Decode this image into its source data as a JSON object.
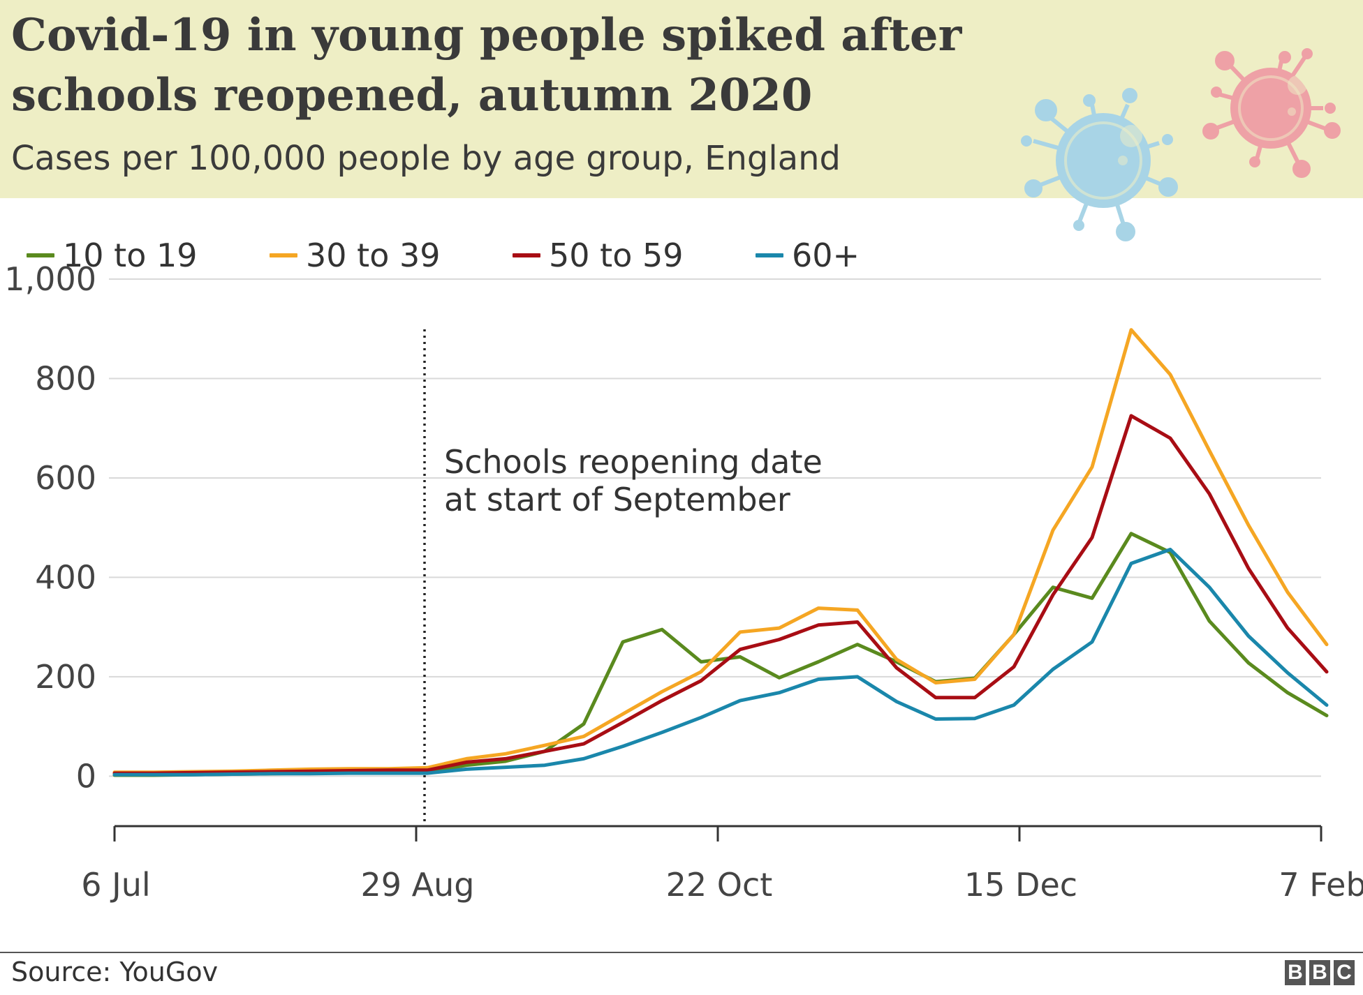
{
  "header": {
    "title": "Covid-19 in young people spiked after schools reopened, autumn 2020",
    "subtitle": "Cases per 100,000 people by age group, England",
    "illustration_icons": [
      "blue-virus-icon",
      "pink-virus-icon"
    ]
  },
  "legend": {
    "items": [
      {
        "label": "10 to 19",
        "color": "#5a8a1e"
      },
      {
        "label": "30 to 39",
        "color": "#f5a623"
      },
      {
        "label": "50 to 59",
        "color": "#a80d14"
      },
      {
        "label": "60+",
        "color": "#1a87ab"
      }
    ]
  },
  "annotation": {
    "line1": "Schools reopening date",
    "line2": "at start of September",
    "date": "2020-09-01"
  },
  "chart_data": {
    "type": "line",
    "title": "Covid-19 in young people spiked after schools reopened, autumn 2020",
    "subtitle": "Cases per 100,000 people by age group, England",
    "xlabel": "",
    "ylabel": "",
    "x": [
      "2020-07-06",
      "2020-07-13",
      "2020-07-20",
      "2020-07-27",
      "2020-08-03",
      "2020-08-10",
      "2020-08-17",
      "2020-08-24",
      "2020-08-31",
      "2020-09-07",
      "2020-09-14",
      "2020-09-21",
      "2020-09-28",
      "2020-10-05",
      "2020-10-12",
      "2020-10-19",
      "2020-10-26",
      "2020-11-02",
      "2020-11-09",
      "2020-11-16",
      "2020-11-23",
      "2020-11-30",
      "2020-12-07",
      "2020-12-14",
      "2020-12-21",
      "2020-12-28",
      "2021-01-04",
      "2021-01-11",
      "2021-01-18",
      "2021-01-25",
      "2021-02-01",
      "2021-02-08"
    ],
    "xticks": [
      {
        "date": "2020-07-06",
        "label": "6 Jul"
      },
      {
        "date": "2020-08-29",
        "label": "29 Aug"
      },
      {
        "date": "2020-10-22",
        "label": "22 Oct"
      },
      {
        "date": "2020-12-15",
        "label": "15 Dec"
      },
      {
        "date": "2021-02-07",
        "label": "7 Feb"
      }
    ],
    "yticks": [
      {
        "value": 0,
        "label": "0"
      },
      {
        "value": 200,
        "label": "200"
      },
      {
        "value": 400,
        "label": "400"
      },
      {
        "value": 600,
        "label": "600"
      },
      {
        "value": 800,
        "label": "800"
      },
      {
        "value": 1000,
        "label": "1,000"
      }
    ],
    "xlim": [
      "2020-07-06",
      "2021-02-07"
    ],
    "ylim": [
      -50,
      1000
    ],
    "grid": "horizontal",
    "legend_position": "top-left",
    "series": [
      {
        "name": "10 to 19",
        "color": "#5a8a1e",
        "values": [
          2,
          2,
          3,
          4,
          5,
          6,
          7,
          8,
          8,
          22,
          30,
          50,
          105,
          270,
          295,
          230,
          240,
          198,
          230,
          265,
          230,
          190,
          197,
          285,
          380,
          358,
          488,
          450,
          312,
          228,
          168,
          122
        ]
      },
      {
        "name": "30 to 39",
        "color": "#f5a623",
        "values": [
          8,
          8,
          9,
          10,
          12,
          14,
          15,
          15,
          17,
          35,
          45,
          62,
          80,
          125,
          170,
          210,
          290,
          298,
          338,
          334,
          235,
          188,
          195,
          285,
          495,
          622,
          898,
          808,
          655,
          505,
          370,
          265
        ]
      },
      {
        "name": "50 to 59",
        "color": "#a80d14",
        "values": [
          6,
          6,
          7,
          8,
          9,
          10,
          11,
          12,
          12,
          28,
          35,
          50,
          65,
          108,
          152,
          192,
          255,
          275,
          304,
          310,
          218,
          158,
          158,
          220,
          365,
          480,
          725,
          680,
          568,
          418,
          298,
          210
        ]
      },
      {
        "name": "60+",
        "color": "#1a87ab",
        "values": [
          3,
          3,
          3,
          4,
          5,
          5,
          6,
          6,
          6,
          14,
          18,
          22,
          35,
          60,
          88,
          118,
          152,
          168,
          195,
          200,
          150,
          115,
          116,
          143,
          215,
          270,
          428,
          456,
          380,
          282,
          208,
          143
        ]
      }
    ]
  },
  "footer": {
    "source": "Source: YouGov",
    "logo_letters": [
      "B",
      "B",
      "C"
    ]
  }
}
